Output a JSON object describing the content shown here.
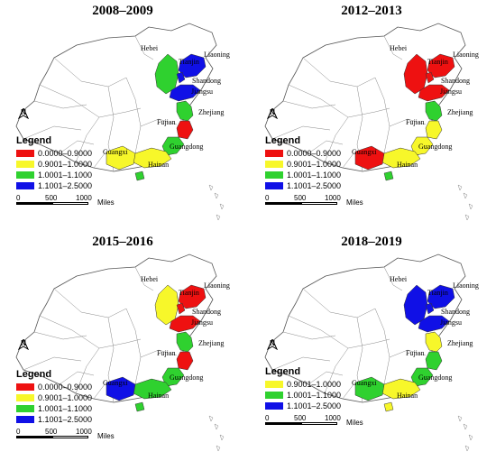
{
  "legend_colors": {
    "red": "#ee1111",
    "yellow": "#f7f72a",
    "green": "#2fd12f",
    "blue": "#1010e6"
  },
  "panels": [
    {
      "title": "2008–2009",
      "legend_title": "Legend",
      "legend": [
        {
          "label": "0.0000–0.9000",
          "color": "#ee1111"
        },
        {
          "label": "0.9001–1.0000",
          "color": "#f7f72a"
        },
        {
          "label": "1.0001–1.1000",
          "color": "#2fd12f"
        },
        {
          "label": "1.1001–2.5000",
          "color": "#1010e6"
        }
      ],
      "regions": {
        "liaoning": "#1010e6",
        "hebei": "#2fd12f",
        "tianjin": "#1010e6",
        "shandong": "#1010e6",
        "jiangsu": "#2fd12f",
        "zhejiang": "#ee1111",
        "fujian": "#2fd12f",
        "guangdong": "#f7f72a",
        "guangxi": "#f7f72a",
        "hainan": "#2fd12f"
      }
    },
    {
      "title": "2012–2013",
      "legend_title": "Legend",
      "legend": [
        {
          "label": "0.0000–0.9000",
          "color": "#ee1111"
        },
        {
          "label": "0.9001–1.0000",
          "color": "#f7f72a"
        },
        {
          "label": "1.0001–1.1000",
          "color": "#2fd12f"
        },
        {
          "label": "1.1001–2.5000",
          "color": "#1010e6"
        }
      ],
      "regions": {
        "liaoning": "#ee1111",
        "hebei": "#ee1111",
        "tianjin": "#ee1111",
        "shandong": "#ee1111",
        "jiangsu": "#2fd12f",
        "zhejiang": "#f7f72a",
        "fujian": "#f7f72a",
        "guangdong": "#f7f72a",
        "guangxi": "#ee1111",
        "hainan": "#2fd12f"
      }
    },
    {
      "title": "2015–2016",
      "legend_title": "Legend",
      "legend": [
        {
          "label": "0.0000–0.9000",
          "color": "#ee1111"
        },
        {
          "label": "0.9001–1.0000",
          "color": "#f7f72a"
        },
        {
          "label": "1.0001–1.1000",
          "color": "#2fd12f"
        },
        {
          "label": "1.1001–2.5000",
          "color": "#1010e6"
        }
      ],
      "regions": {
        "liaoning": "#ee1111",
        "hebei": "#f7f72a",
        "tianjin": "#ee1111",
        "shandong": "#ee1111",
        "jiangsu": "#2fd12f",
        "zhejiang": "#ee1111",
        "fujian": "#2fd12f",
        "guangdong": "#2fd12f",
        "guangxi": "#1010e6",
        "hainan": "#2fd12f"
      }
    },
    {
      "title": "2018–2019",
      "legend_title": "Legend",
      "legend": [
        {
          "label": "0.9001–1.0000",
          "color": "#f7f72a"
        },
        {
          "label": "1.0001–1.1000",
          "color": "#2fd12f"
        },
        {
          "label": "1.1001–2.5000",
          "color": "#1010e6"
        }
      ],
      "regions": {
        "liaoning": "#1010e6",
        "hebei": "#1010e6",
        "tianjin": "#1010e6",
        "shandong": "#1010e6",
        "jiangsu": "#f7f72a",
        "zhejiang": "#2fd12f",
        "fujian": "#2fd12f",
        "guangdong": "#f7f72a",
        "guangxi": "#2fd12f",
        "hainan": "#f7f72a"
      }
    }
  ],
  "province_labels": {
    "liaoning": "Liaoning",
    "hebei": "Hebei",
    "tianjin": "Tianjin",
    "shandong": "Shandong",
    "jiangsu": "Jiangsu",
    "zhejiang": "Zhejiang",
    "fujian": "Fujian",
    "guangdong": "Guangdong",
    "guangxi": "Guangxi",
    "hainan": "Hainan"
  },
  "north_arrow": {
    "letter": "N"
  },
  "scale_bar": {
    "ticks": [
      "0",
      "500",
      "1000"
    ],
    "unit": "Miles"
  }
}
